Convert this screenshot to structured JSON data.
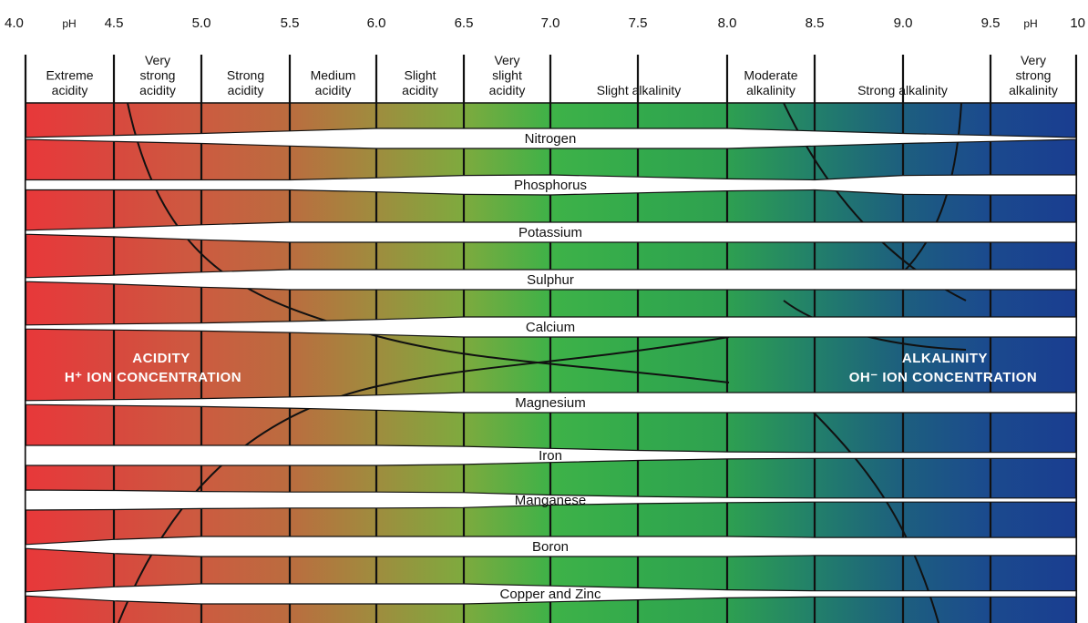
{
  "ph_ticks": [
    "4.0",
    "4.5",
    "5.0",
    "5.5",
    "6.0",
    "6.5",
    "7.0",
    "7.5",
    "8.0",
    "8.5",
    "9.0",
    "9.5",
    "10"
  ],
  "ph_unit": "pH",
  "zones": [
    {
      "ph_from": 4.0,
      "ph_to": 4.5,
      "lines": [
        "Extreme",
        "acidity"
      ]
    },
    {
      "ph_from": 4.5,
      "ph_to": 5.0,
      "lines": [
        "Very",
        "strong",
        "acidity"
      ]
    },
    {
      "ph_from": 5.0,
      "ph_to": 5.5,
      "lines": [
        "Strong",
        "acidity"
      ]
    },
    {
      "ph_from": 5.5,
      "ph_to": 6.0,
      "lines": [
        "Medium",
        "acidity"
      ]
    },
    {
      "ph_from": 6.0,
      "ph_to": 6.5,
      "lines": [
        "Slight",
        "acidity"
      ]
    },
    {
      "ph_from": 6.5,
      "ph_to": 7.0,
      "lines": [
        "Very",
        "slight",
        "acidity"
      ]
    },
    {
      "ph_from": 7.0,
      "ph_to": 8.0,
      "lines": [
        "Slight alkalinity"
      ]
    },
    {
      "ph_from": 8.0,
      "ph_to": 8.5,
      "lines": [
        "Moderate",
        "alkalinity"
      ]
    },
    {
      "ph_from": 8.5,
      "ph_to": 9.5,
      "lines": [
        "Strong alkalinity"
      ]
    },
    {
      "ph_from": 9.5,
      "ph_to": 10.0,
      "lines": [
        "Very",
        "strong",
        "alkalinity"
      ]
    }
  ],
  "nutrients": [
    {
      "name": "Nitrogen",
      "availability": [
        0.1,
        0.3,
        0.5,
        0.75,
        1.0,
        1.0,
        1.0,
        1.0,
        1.0,
        0.75,
        0.5,
        0.3,
        0.1
      ]
    },
    {
      "name": "Phosphorus",
      "availability": [
        0.5,
        0.5,
        0.5,
        0.5,
        0.7,
        0.95,
        1.0,
        0.8,
        0.6,
        0.5,
        0.95,
        1.0,
        1.0
      ]
    },
    {
      "name": "Potassium",
      "availability": [
        0.2,
        0.45,
        0.75,
        1.0,
        1.0,
        1.0,
        1.0,
        1.0,
        1.0,
        1.0,
        1.0,
        1.0,
        1.0
      ]
    },
    {
      "name": "Sulphur",
      "availability": [
        0.2,
        0.45,
        0.75,
        1.0,
        1.0,
        1.0,
        1.0,
        1.0,
        1.0,
        1.0,
        1.0,
        1.0,
        1.0
      ]
    },
    {
      "name": "Calcium",
      "availability": [
        0.2,
        0.3,
        0.4,
        0.55,
        0.75,
        1.0,
        1.0,
        1.0,
        1.0,
        1.0,
        1.0,
        1.0,
        1.0
      ]
    },
    {
      "name": "Magnesium",
      "availability": [
        0.2,
        0.3,
        0.4,
        0.55,
        0.75,
        1.0,
        1.0,
        1.0,
        1.0,
        1.0,
        1.0,
        1.0,
        1.0
      ]
    },
    {
      "name": "Iron",
      "availability": [
        1.0,
        1.0,
        1.0,
        1.0,
        1.0,
        0.9,
        0.7,
        0.5,
        0.35,
        0.3,
        0.3,
        0.3,
        0.3
      ]
    },
    {
      "name": "Manganese",
      "availability": [
        1.0,
        0.95,
        0.85,
        0.8,
        0.8,
        0.75,
        0.5,
        0.35,
        0.25,
        0.2,
        0.2,
        0.2,
        0.2
      ]
    },
    {
      "name": "Boron",
      "availability": [
        0.2,
        0.7,
        1.0,
        1.0,
        1.0,
        1.0,
        1.0,
        1.0,
        1.0,
        0.9,
        0.9,
        0.9,
        0.9
      ]
    },
    {
      "name": "Copper and Zinc",
      "availability": [
        0.2,
        0.7,
        1.0,
        1.0,
        1.0,
        1.0,
        0.8,
        0.6,
        0.4,
        0.3,
        0.3,
        0.3,
        0.3
      ]
    }
  ],
  "acidity_label": {
    "line1": "ACIDITY",
    "line2": "H⁺ ION CONCENTRATION"
  },
  "alkalinity_label": {
    "line1": "ALKALINITY",
    "line2": "OH⁻ ION CONCENTRATION"
  },
  "gradient_colors": [
    "#e8383a",
    "#d8483e",
    "#cc5b40",
    "#bb6c3f",
    "#9f8c3e",
    "#7eaa3e",
    "#3eb248",
    "#33aa4c",
    "#2ea050",
    "#22806a",
    "#1d5f7e",
    "#1b4a8e",
    "#1a3d90"
  ],
  "border_color": "#111111"
}
